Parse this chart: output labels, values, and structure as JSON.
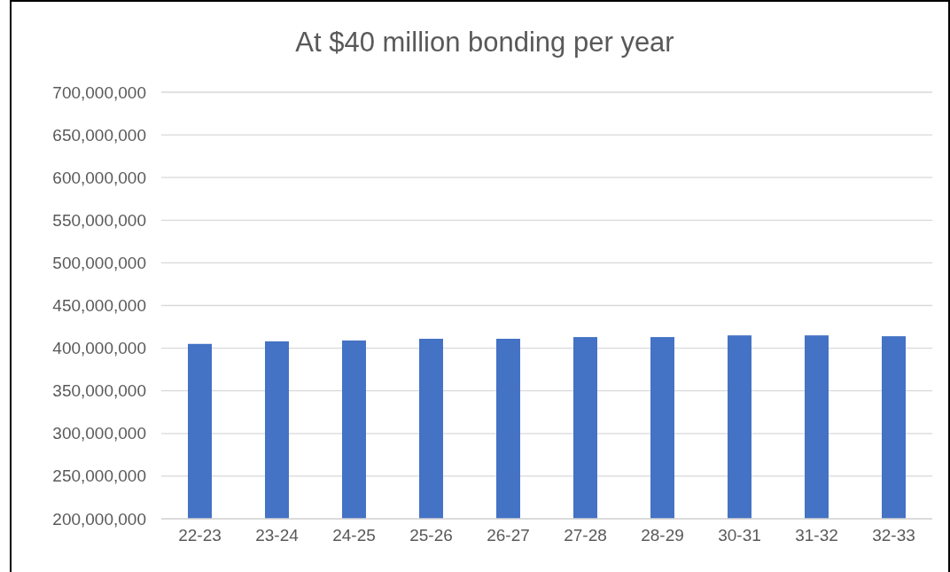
{
  "chart_data": {
    "type": "bar",
    "title": "At $40 million bonding per year",
    "categories": [
      "22-23",
      "23-24",
      "24-25",
      "25-26",
      "26-27",
      "27-28",
      "28-29",
      "30-31",
      "31-32",
      "32-33"
    ],
    "values": [
      405000000,
      408000000,
      409000000,
      411000000,
      411000000,
      413000000,
      413000000,
      415000000,
      415000000,
      414000000
    ],
    "color": "#4472c4",
    "ylim": [
      200000000,
      700000000
    ],
    "yticks": [
      {
        "value": 200000000,
        "label": "200,000,000"
      },
      {
        "value": 250000000,
        "label": "250,000,000"
      },
      {
        "value": 300000000,
        "label": "300,000,000"
      },
      {
        "value": 350000000,
        "label": "350,000,000"
      },
      {
        "value": 400000000,
        "label": "400,000,000"
      },
      {
        "value": 450000000,
        "label": "450,000,000"
      },
      {
        "value": 500000000,
        "label": "500,000,000"
      },
      {
        "value": 550000000,
        "label": "550,000,000"
      },
      {
        "value": 600000000,
        "label": "600,000,000"
      },
      {
        "value": 650000000,
        "label": "650,000,000"
      },
      {
        "value": 700000000,
        "label": "700,000,000"
      }
    ],
    "grid": "y"
  }
}
